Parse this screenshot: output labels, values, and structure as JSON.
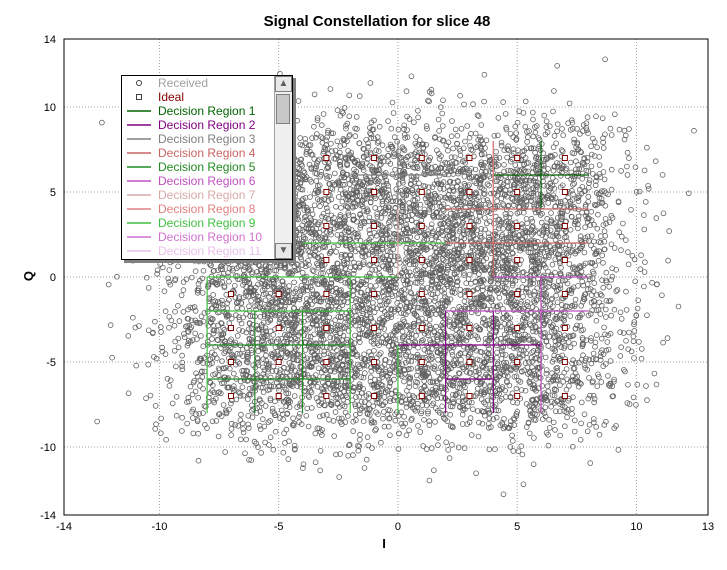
{
  "chart_data": {
    "type": "scatter",
    "title": "Signal Constellation for slice 48",
    "xlabel": "I",
    "ylabel": "Q",
    "xlim": [
      -14,
      13
    ],
    "ylim": [
      -14,
      14
    ],
    "xticks": [
      -14,
      -10,
      -5,
      0,
      5,
      10,
      13
    ],
    "yticks": [
      -14,
      -10,
      -5,
      0,
      5,
      10,
      14
    ],
    "grid": true,
    "legend_position": "top-left",
    "colors": {
      "received": "#606060",
      "ideal": "#800000",
      "region_1": "#006400",
      "region_2": "#800080",
      "region_3": "#808080",
      "region_4": "#c86464",
      "region_5": "#228b22",
      "region_6": "#c050c0",
      "region_7": "#d8a8a8",
      "region_8": "#e08080",
      "region_9": "#40c040",
      "region_10": "#d070d0",
      "region_11": "#e8c0e8"
    },
    "ideal_points": [
      {
        "i": -7,
        "q": -7
      },
      {
        "i": -5,
        "q": -7
      },
      {
        "i": -3,
        "q": -7
      },
      {
        "i": -1,
        "q": -7
      },
      {
        "i": 1,
        "q": -7
      },
      {
        "i": 3,
        "q": -7
      },
      {
        "i": 5,
        "q": -7
      },
      {
        "i": 7,
        "q": -7
      },
      {
        "i": -7,
        "q": -5
      },
      {
        "i": -5,
        "q": -5
      },
      {
        "i": -3,
        "q": -5
      },
      {
        "i": -1,
        "q": -5
      },
      {
        "i": 1,
        "q": -5
      },
      {
        "i": 3,
        "q": -5
      },
      {
        "i": 5,
        "q": -5
      },
      {
        "i": 7,
        "q": -5
      },
      {
        "i": -7,
        "q": -3
      },
      {
        "i": -5,
        "q": -3
      },
      {
        "i": -3,
        "q": -3
      },
      {
        "i": -1,
        "q": -3
      },
      {
        "i": 1,
        "q": -3
      },
      {
        "i": 3,
        "q": -3
      },
      {
        "i": 5,
        "q": -3
      },
      {
        "i": 7,
        "q": -3
      },
      {
        "i": -7,
        "q": -1
      },
      {
        "i": -5,
        "q": -1
      },
      {
        "i": -3,
        "q": -1
      },
      {
        "i": -1,
        "q": -1
      },
      {
        "i": 1,
        "q": -1
      },
      {
        "i": 3,
        "q": -1
      },
      {
        "i": 5,
        "q": -1
      },
      {
        "i": 7,
        "q": -1
      },
      {
        "i": -7,
        "q": 1
      },
      {
        "i": -5,
        "q": 1
      },
      {
        "i": -3,
        "q": 1
      },
      {
        "i": -1,
        "q": 1
      },
      {
        "i": 1,
        "q": 1
      },
      {
        "i": 3,
        "q": 1
      },
      {
        "i": 5,
        "q": 1
      },
      {
        "i": 7,
        "q": 1
      },
      {
        "i": -7,
        "q": 3
      },
      {
        "i": -5,
        "q": 3
      },
      {
        "i": -3,
        "q": 3
      },
      {
        "i": -1,
        "q": 3
      },
      {
        "i": 1,
        "q": 3
      },
      {
        "i": 3,
        "q": 3
      },
      {
        "i": 5,
        "q": 3
      },
      {
        "i": 7,
        "q": 3
      },
      {
        "i": -7,
        "q": 5
      },
      {
        "i": -5,
        "q": 5
      },
      {
        "i": -3,
        "q": 5
      },
      {
        "i": -1,
        "q": 5
      },
      {
        "i": 1,
        "q": 5
      },
      {
        "i": 3,
        "q": 5
      },
      {
        "i": 5,
        "q": 5
      },
      {
        "i": 7,
        "q": 5
      },
      {
        "i": -7,
        "q": 7
      },
      {
        "i": -5,
        "q": 7
      },
      {
        "i": -3,
        "q": 7
      },
      {
        "i": -1,
        "q": 7
      },
      {
        "i": 1,
        "q": 7
      },
      {
        "i": 3,
        "q": 7
      },
      {
        "i": 5,
        "q": 7
      },
      {
        "i": 7,
        "q": 7
      }
    ],
    "decision_region_lines": [
      {
        "region": 1,
        "i1": 4,
        "q1": 6,
        "i2": 8,
        "q2": 6
      },
      {
        "region": 1,
        "i1": 6,
        "q1": 4,
        "i2": 6,
        "q2": 8
      },
      {
        "region": 4,
        "i1": 2,
        "q1": 4,
        "i2": 8,
        "q2": 4
      },
      {
        "region": 4,
        "i1": 2,
        "q1": 2,
        "i2": 8,
        "q2": 2
      },
      {
        "region": 4,
        "i1": 4,
        "q1": 0,
        "i2": 4,
        "q2": 8
      },
      {
        "region": 3,
        "i1": 0,
        "q1": 4,
        "i2": 0,
        "q2": 8
      },
      {
        "region": 3,
        "i1": -2,
        "q1": 6,
        "i2": 2,
        "q2": 6
      },
      {
        "region": 2,
        "i1": 0,
        "q1": -4,
        "i2": 6,
        "q2": -4
      },
      {
        "region": 2,
        "i1": 2,
        "q1": -6,
        "i2": 4,
        "q2": -6
      },
      {
        "region": 2,
        "i1": 2,
        "q1": -8,
        "i2": 2,
        "q2": -2
      },
      {
        "region": 2,
        "i1": 4,
        "q1": -8,
        "i2": 4,
        "q2": -2
      },
      {
        "region": 6,
        "i1": 2,
        "q1": -2,
        "i2": 8,
        "q2": -2
      },
      {
        "region": 6,
        "i1": 6,
        "q1": -8,
        "i2": 6,
        "q2": 0
      },
      {
        "region": 6,
        "i1": 4,
        "q1": 0,
        "i2": 8,
        "q2": 0
      },
      {
        "region": 5,
        "i1": -8,
        "q1": -4,
        "i2": -2,
        "q2": -4
      },
      {
        "region": 5,
        "i1": -8,
        "q1": -6,
        "i2": -2,
        "q2": -6
      },
      {
        "region": 5,
        "i1": -6,
        "q1": -8,
        "i2": -6,
        "q2": -2
      },
      {
        "region": 5,
        "i1": -4,
        "q1": -8,
        "i2": -4,
        "q2": -2
      },
      {
        "region": 9,
        "i1": -8,
        "q1": 0,
        "i2": 0,
        "q2": 0
      },
      {
        "region": 9,
        "i1": -8,
        "q1": -2,
        "i2": -2,
        "q2": -2
      },
      {
        "region": 9,
        "i1": -2,
        "q1": -8,
        "i2": -2,
        "q2": 0
      },
      {
        "region": 9,
        "i1": -8,
        "q1": -8,
        "i2": -8,
        "q2": 0
      },
      {
        "region": 9,
        "i1": 0,
        "q1": -8,
        "i2": 0,
        "q2": -4
      },
      {
        "region": 9,
        "i1": -4,
        "q1": 2,
        "i2": 2,
        "q2": 2
      },
      {
        "region": 7,
        "i1": 0,
        "q1": 0,
        "i2": 0,
        "q2": 4
      },
      {
        "region": 8,
        "i1": 4,
        "q1": 2,
        "i2": 4,
        "q2": 8
      }
    ],
    "received": {
      "description_free": true,
      "seed": 48,
      "count": 7000,
      "centers_from": "ideal_points",
      "noise_std": 1.6
    }
  },
  "legend": {
    "items": [
      {
        "label": "Received",
        "symbol": "circle",
        "color": "#a0a0a0",
        "key": "received"
      },
      {
        "label": "Ideal",
        "symbol": "square",
        "color": "#800000",
        "key": "ideal"
      },
      {
        "label": "Decision Region 1",
        "symbol": "line",
        "color": "#006400",
        "key": "region_1"
      },
      {
        "label": "Decision Region 2",
        "symbol": "line",
        "color": "#800080",
        "key": "region_2"
      },
      {
        "label": "Decision Region 3",
        "symbol": "line",
        "color": "#808080",
        "key": "region_3"
      },
      {
        "label": "Decision Region 4",
        "symbol": "line",
        "color": "#c86464",
        "key": "region_4"
      },
      {
        "label": "Decision Region 5",
        "symbol": "line",
        "color": "#228b22",
        "key": "region_5"
      },
      {
        "label": "Decision Region 6",
        "symbol": "line",
        "color": "#c050c0",
        "key": "region_6"
      },
      {
        "label": "Decision Region 7",
        "symbol": "line",
        "color": "#d8a8a8",
        "key": "region_7"
      },
      {
        "label": "Decision Region 8",
        "symbol": "line",
        "color": "#e08080",
        "key": "region_8"
      },
      {
        "label": "Decision Region 9",
        "symbol": "line",
        "color": "#40c040",
        "key": "region_9"
      },
      {
        "label": "Decision Region 10",
        "symbol": "line",
        "color": "#d070d0",
        "key": "region_10"
      },
      {
        "label": "Decision Region 11",
        "symbol": "line",
        "color": "#e8c0e8",
        "key": "region_11"
      }
    ]
  }
}
